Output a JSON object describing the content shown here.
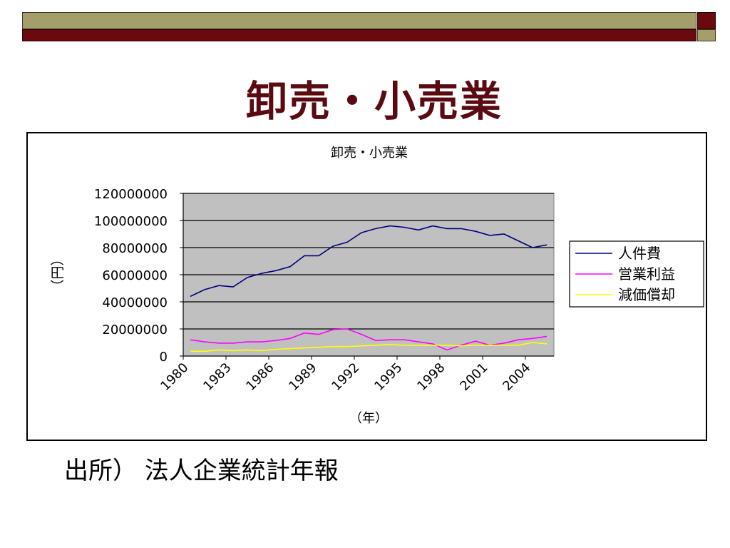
{
  "slide": {
    "title": "卸売・小売業",
    "source": "出所）  法人企業統計年報"
  },
  "chart_data": {
    "type": "line",
    "title": "卸売・小売業",
    "xlabel": "（年）",
    "ylabel": "（円）",
    "ylim": [
      0,
      120000000
    ],
    "yticks": [
      0,
      20000000,
      40000000,
      60000000,
      80000000,
      100000000,
      120000000
    ],
    "ytick_labels": [
      "0",
      "20000000",
      "40000000",
      "60000000",
      "80000000",
      "100000000",
      "120000000"
    ],
    "xticks": [
      1980,
      1983,
      1986,
      1989,
      1992,
      1995,
      1998,
      2001,
      2004
    ],
    "xtick_labels": [
      "1980",
      "1983",
      "1986",
      "1989",
      "1992",
      "1995",
      "1998",
      "2001",
      "2004"
    ],
    "x": [
      1980,
      1981,
      1982,
      1983,
      1984,
      1985,
      1986,
      1987,
      1988,
      1989,
      1990,
      1991,
      1992,
      1993,
      1994,
      1995,
      1996,
      1997,
      1998,
      1999,
      2000,
      2001,
      2002,
      2003,
      2004,
      2005
    ],
    "grid": true,
    "plot_background": "#c0c0c0",
    "legend_position": "right",
    "series": [
      {
        "name": "人件費",
        "color": "#000080",
        "values": [
          44000000,
          49000000,
          52000000,
          51000000,
          58000000,
          61000000,
          63000000,
          66000000,
          74000000,
          74000000,
          81000000,
          84000000,
          91000000,
          94000000,
          96000000,
          95000000,
          93000000,
          96000000,
          94000000,
          94000000,
          92000000,
          89000000,
          90000000,
          85000000,
          80000000,
          82000000
        ]
      },
      {
        "name": "営業利益",
        "color": "#ff00ff",
        "values": [
          12000000,
          10500000,
          9500000,
          9500000,
          10500000,
          10500000,
          11500000,
          13000000,
          17000000,
          16000000,
          19500000,
          20000000,
          16000000,
          11500000,
          12000000,
          12000000,
          10500000,
          9000000,
          4500000,
          8000000,
          11000000,
          8000000,
          9500000,
          12000000,
          13000000,
          14500000
        ]
      },
      {
        "name": "減価償却",
        "color": "#ffff00",
        "values": [
          3500000,
          3500000,
          4500000,
          4000000,
          4500000,
          4000000,
          5000000,
          5500000,
          6000000,
          6500000,
          7000000,
          7000000,
          7500000,
          8000000,
          8500000,
          8000000,
          8000000,
          8000000,
          8000000,
          7500000,
          8000000,
          8000000,
          8000000,
          8000000,
          10000000,
          9000000
        ]
      }
    ]
  }
}
